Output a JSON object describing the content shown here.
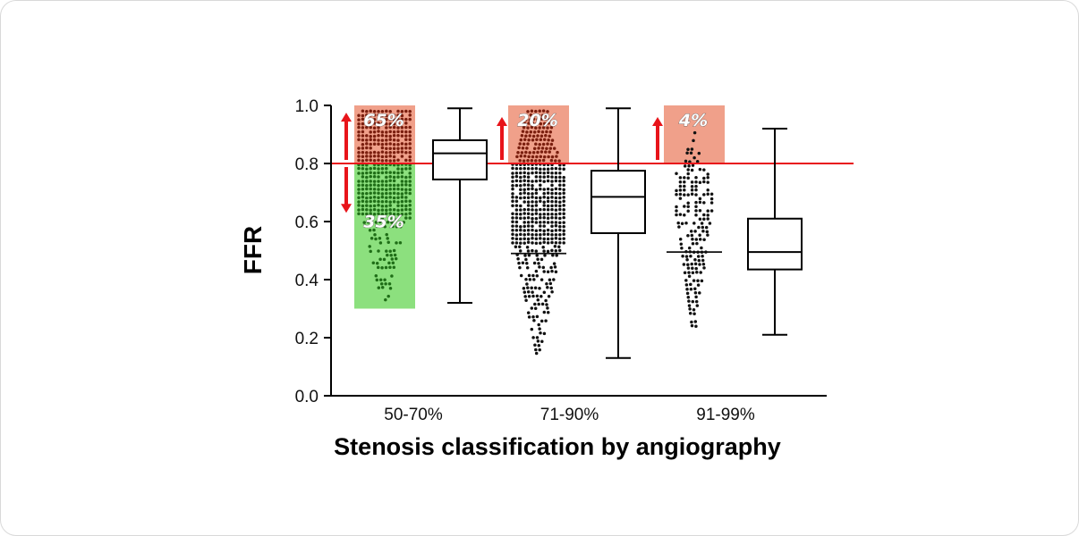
{
  "colors": {
    "threshold": "#e8141a",
    "above_bg": "#f0a08a",
    "below_bg": "#8ce07e",
    "dot_below_green": "#1f6e17",
    "dot_above_red": "#7a1e0e",
    "dot_black": "#111111",
    "box": "#000000"
  },
  "chart_data": {
    "type": "box+dot",
    "ylabel": "FFR",
    "xlabel": "Stenosis classification by angiography",
    "ylim": [
      0.0,
      1.0
    ],
    "yticks": [
      "0.0",
      "0.2",
      "0.4",
      "0.6",
      "0.8",
      "1.0"
    ],
    "threshold": 0.8,
    "groups": [
      {
        "name": "50-70%",
        "pct_above": "65%",
        "pct_below": "35%",
        "show_below_label": true,
        "dot_min": 0.32,
        "dot_max": 0.98,
        "dot_median": null,
        "box": {
          "min": 0.32,
          "q1": 0.745,
          "median": 0.835,
          "q3": 0.88,
          "max": 0.99
        }
      },
      {
        "name": "71-90%",
        "pct_above": "20%",
        "pct_below": "",
        "show_below_label": false,
        "dot_min": 0.14,
        "dot_max": 0.98,
        "dot_median": 0.49,
        "box": {
          "min": 0.13,
          "q1": 0.56,
          "median": 0.685,
          "q3": 0.775,
          "max": 0.99
        }
      },
      {
        "name": "91-99%",
        "pct_above": "4%",
        "pct_below": "",
        "show_below_label": false,
        "dot_min": 0.23,
        "dot_max": 0.92,
        "dot_median": 0.495,
        "box": {
          "min": 0.21,
          "q1": 0.435,
          "median": 0.495,
          "q3": 0.61,
          "max": 0.92
        }
      }
    ]
  }
}
